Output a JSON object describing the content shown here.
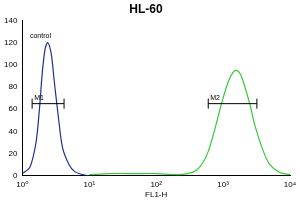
{
  "chart_data": {
    "type": "line",
    "title": "HL-60",
    "x_label": "FL1-H",
    "log": "x",
    "xlim": [
      1,
      10000
    ],
    "xticks": [
      {
        "value": 1,
        "label": "10⁰"
      },
      {
        "value": 10,
        "label": "10¹"
      },
      {
        "value": 100,
        "label": "10²"
      },
      {
        "value": 1000,
        "label": "10³"
      },
      {
        "value": 10000,
        "label": "10⁴"
      }
    ],
    "ylim": [
      0,
      140
    ],
    "yticks": [
      0,
      20,
      40,
      60,
      80,
      100,
      120,
      140
    ],
    "grid": false,
    "series": [
      {
        "color": "#1f2f8f",
        "x": [
          1.0,
          1.3,
          1.6,
          1.8,
          2.0,
          2.2,
          2.4,
          2.7,
          3.0,
          3.5,
          4.0,
          5.0,
          6.0,
          8.0,
          10.0
        ],
        "values": [
          2,
          8,
          30,
          60,
          95,
          115,
          120,
          110,
          85,
          50,
          25,
          10,
          4,
          1,
          0
        ]
      },
      {
        "color": "#33cc33",
        "x": [
          10,
          20,
          50,
          100,
          200,
          300,
          400,
          500,
          600,
          700,
          800,
          900,
          1000,
          1200,
          1400,
          1600,
          1800,
          2000,
          2500,
          3000,
          4000,
          5000,
          7000,
          10000
        ],
        "values": [
          1,
          2,
          2,
          2,
          1,
          2,
          5,
          12,
          22,
          35,
          48,
          60,
          70,
          85,
          93,
          95,
          92,
          85,
          65,
          45,
          22,
          10,
          3,
          1
        ]
      }
    ],
    "annotations": [
      {
        "text": "control",
        "x": 1.3,
        "y": 126
      }
    ],
    "gates": [
      {
        "label": "M1",
        "range": [
          1.4,
          4.2
        ],
        "y": 65
      },
      {
        "label": "M2",
        "range": [
          600,
          3200
        ],
        "y": 65
      }
    ]
  }
}
